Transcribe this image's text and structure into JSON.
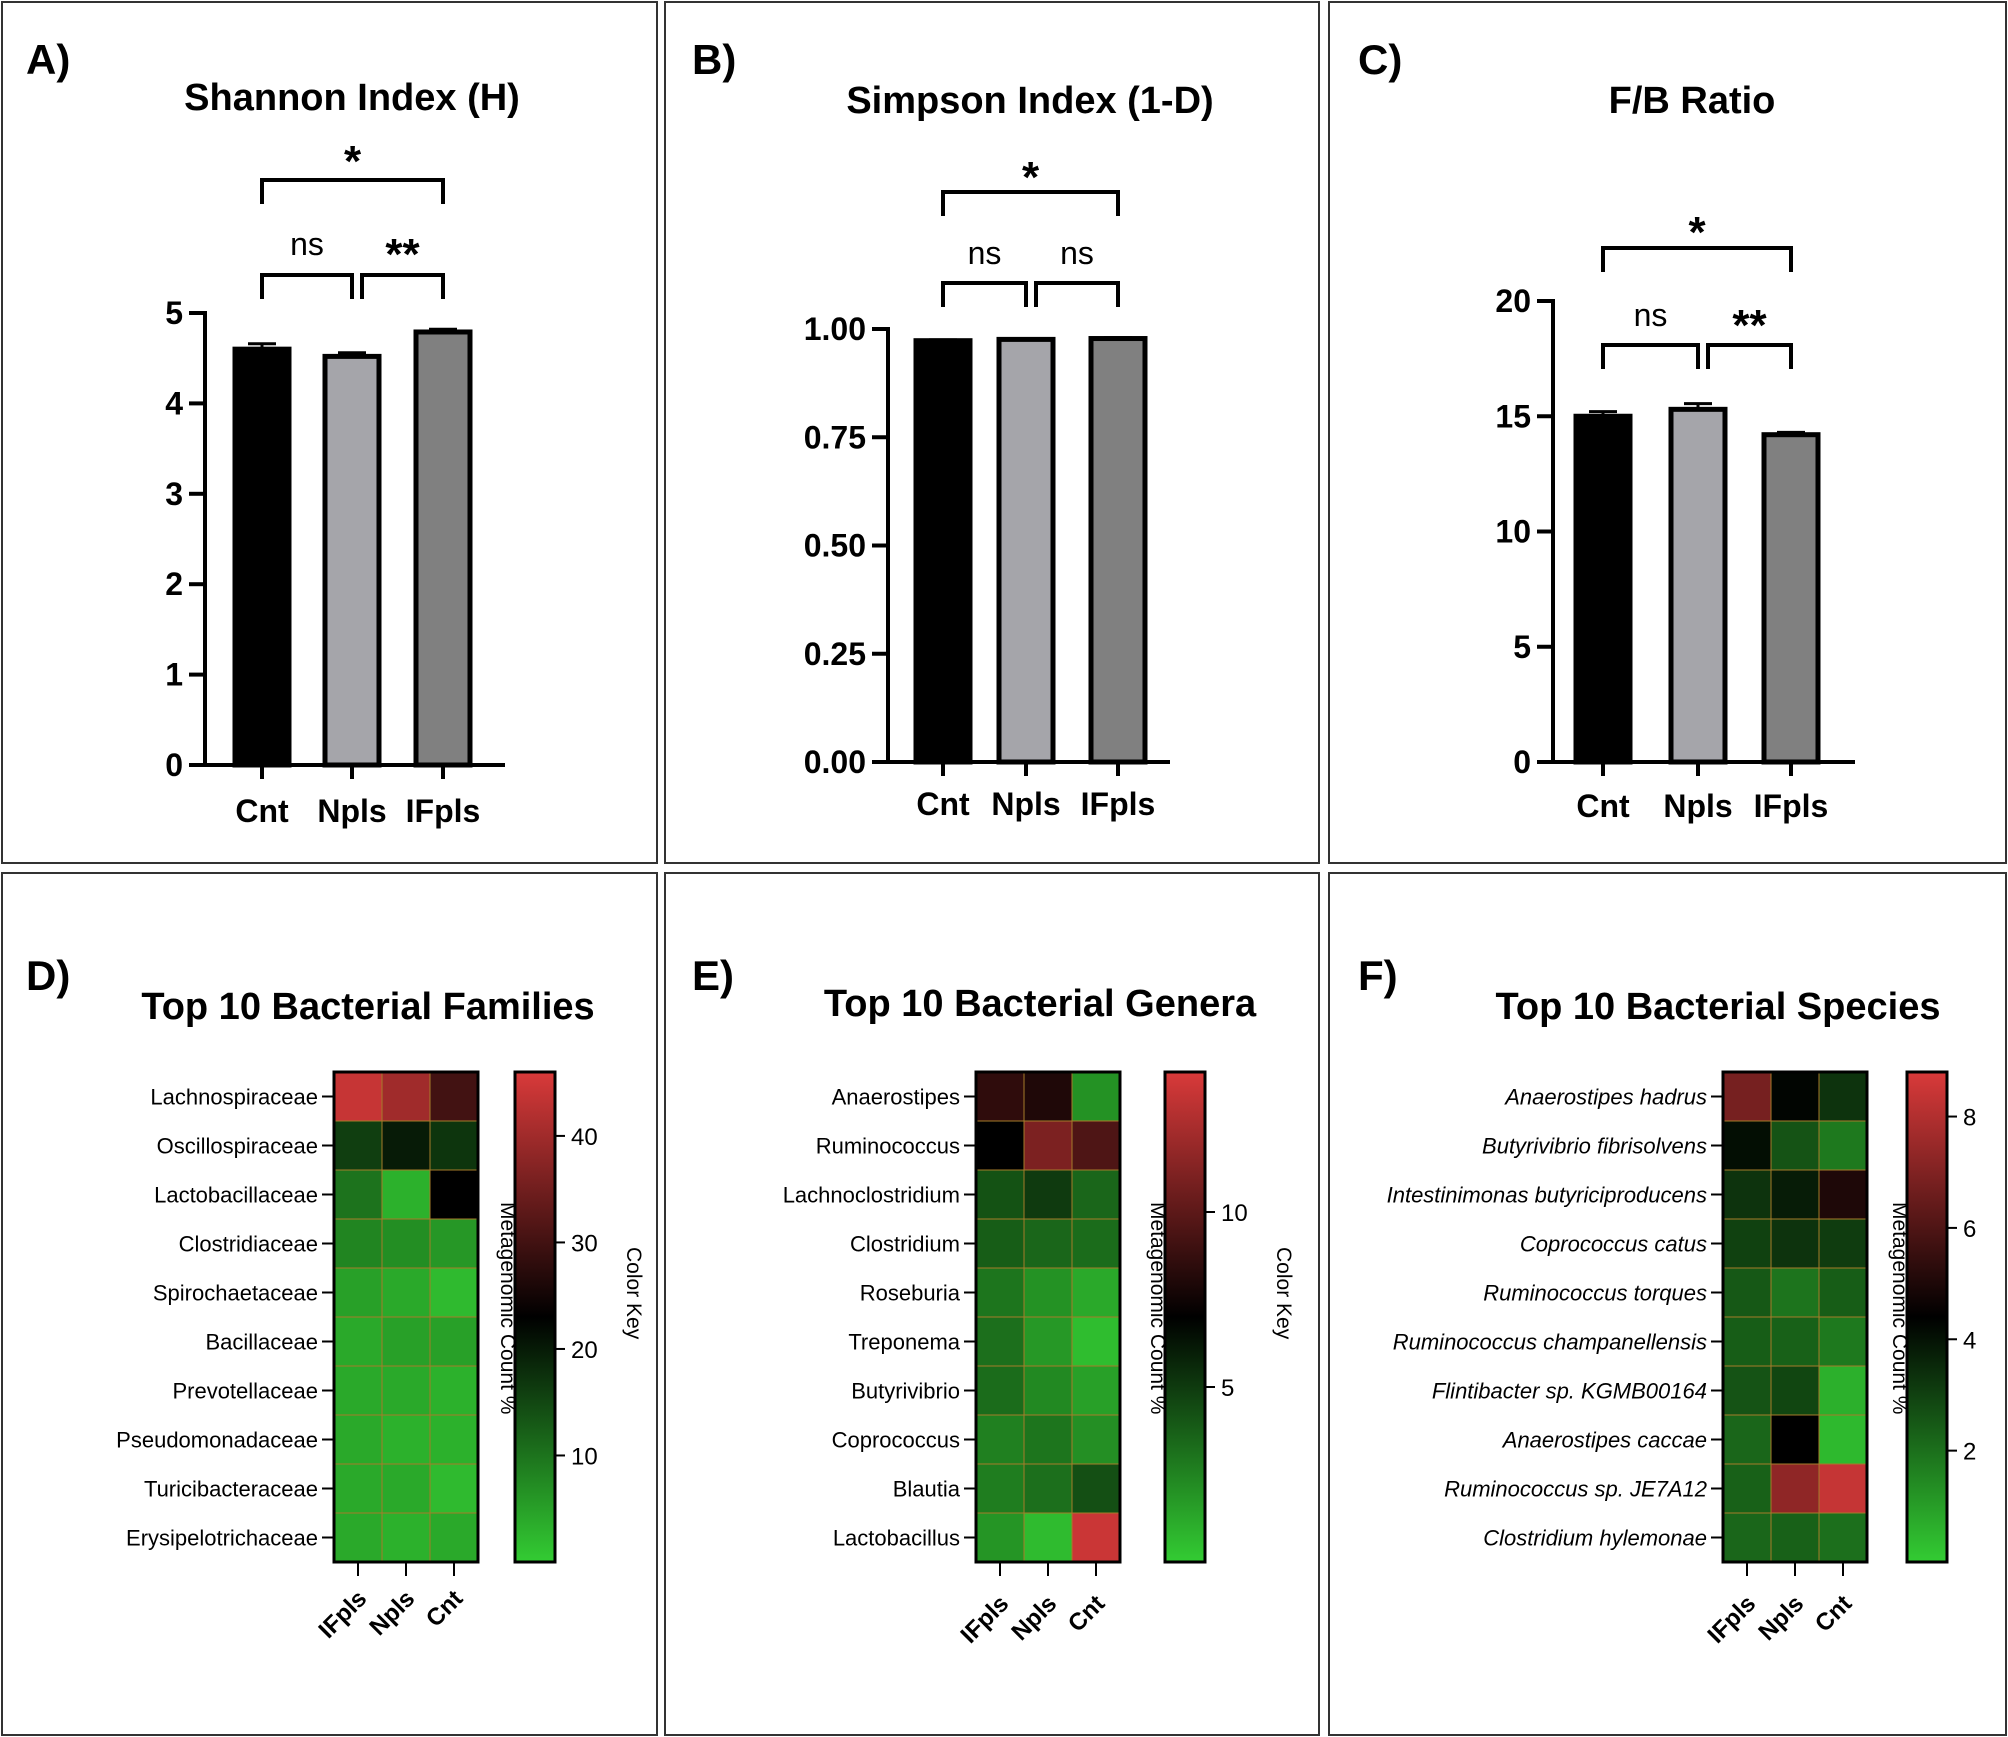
{
  "panels": {
    "A": {
      "letter": "A)",
      "chart_data": {
        "type": "bar",
        "title": "Shannon Index (H)",
        "categories": [
          "Cnt",
          "Npls",
          "IFpls"
        ],
        "values": [
          4.6,
          4.52,
          4.79
        ],
        "errors": [
          0.06,
          0.04,
          0.03
        ],
        "bar_colors": [
          "#000000",
          "#a5a5aa",
          "#808080"
        ],
        "ylim": [
          0,
          5
        ],
        "yticks": [
          0,
          1,
          2,
          3,
          4,
          5
        ],
        "tick_labels": [
          "0",
          "1",
          "2",
          "3",
          "4",
          "5"
        ],
        "significance": [
          {
            "from": 0,
            "to": 1,
            "label": "ns"
          },
          {
            "from": 1,
            "to": 2,
            "label": "**"
          },
          {
            "from": 0,
            "to": 2,
            "label": "*"
          }
        ]
      }
    },
    "B": {
      "letter": "B)",
      "chart_data": {
        "type": "bar",
        "title": "Simpson Index (1-D)",
        "categories": [
          "Cnt",
          "Npls",
          "IFpls"
        ],
        "values": [
          0.973,
          0.976,
          0.978
        ],
        "errors": [
          0.002,
          0.002,
          0.002
        ],
        "bar_colors": [
          "#000000",
          "#a5a5aa",
          "#808080"
        ],
        "ylim": [
          0,
          1.0
        ],
        "yticks": [
          0,
          0.25,
          0.5,
          0.75,
          1.0
        ],
        "tick_labels": [
          "0.00",
          "0.25",
          "0.50",
          "0.75",
          "1.00"
        ],
        "significance": [
          {
            "from": 0,
            "to": 1,
            "label": "ns"
          },
          {
            "from": 1,
            "to": 2,
            "label": "ns"
          },
          {
            "from": 0,
            "to": 2,
            "label": "*"
          }
        ]
      }
    },
    "C": {
      "letter": "C)",
      "chart_data": {
        "type": "bar",
        "title": "F/B Ratio",
        "categories": [
          "Cnt",
          "Npls",
          "IFpls"
        ],
        "values": [
          15.0,
          15.3,
          14.2
        ],
        "errors": [
          0.2,
          0.25,
          0.1
        ],
        "bar_colors": [
          "#000000",
          "#a5a5aa",
          "#808080"
        ],
        "ylim": [
          0,
          20
        ],
        "yticks": [
          0,
          5,
          10,
          15,
          20
        ],
        "tick_labels": [
          "0",
          "5",
          "10",
          "15",
          "20"
        ],
        "significance": [
          {
            "from": 0,
            "to": 1,
            "label": "ns"
          },
          {
            "from": 1,
            "to": 2,
            "label": "**"
          },
          {
            "from": 0,
            "to": 2,
            "label": "*"
          }
        ]
      }
    },
    "D": {
      "letter": "D)",
      "chart_data": {
        "type": "heatmap",
        "title": "Top 10 Bacterial Families",
        "italic_rows": false,
        "rows": [
          "Lachnospiraceae",
          "Oscillospiraceae",
          "Lactobacillaceae",
          "Clostridiaceae",
          "Spirochaetaceae",
          "Bacillaceae",
          "Prevotellaceae",
          "Pseudomonadaceae",
          "Turicibacteraceae",
          "Erysipelotrichaceae"
        ],
        "columns": [
          "IFpls",
          "Npls",
          "Cnt"
        ],
        "values": [
          [
            44,
            40,
            30
          ],
          [
            16,
            20,
            17
          ],
          [
            10,
            3,
            23
          ],
          [
            8,
            7,
            6
          ],
          [
            5,
            4,
            2
          ],
          [
            4,
            5,
            5
          ],
          [
            4,
            4,
            3
          ],
          [
            4,
            3,
            3
          ],
          [
            4,
            4,
            2
          ],
          [
            4,
            3,
            4
          ]
        ],
        "vmin": 0,
        "vmid": 23,
        "vmax": 46,
        "colorbar_ticks": [
          10,
          20,
          30,
          40
        ],
        "colorbar_label": "Metagenomic Count %",
        "colorbar_title": "Color Key"
      }
    },
    "E": {
      "letter": "E)",
      "chart_data": {
        "type": "heatmap",
        "title": "Top 10 Bacterial Genera",
        "italic_rows": false,
        "rows": [
          "Anaerostipes",
          "Ruminococcus",
          "Lachnoclostridium",
          "Clostridium",
          "Roseburia",
          "Treponema",
          "Butyrivibrio",
          "Coprococcus",
          "Blautia",
          "Lactobacillus"
        ],
        "columns": [
          "IFpls",
          "Npls",
          "Cnt"
        ],
        "values": [
          [
            8.5,
            8.0,
            2.0
          ],
          [
            7.0,
            11.0,
            9.5
          ],
          [
            4.2,
            5.0,
            3.5
          ],
          [
            3.8,
            3.5,
            3.3
          ],
          [
            3.0,
            2.0,
            1.2
          ],
          [
            3.2,
            1.8,
            0.5
          ],
          [
            3.3,
            2.3,
            1.5
          ],
          [
            2.6,
            3.0,
            2.1
          ],
          [
            2.7,
            3.2,
            4.3
          ],
          [
            1.9,
            0.6,
            13.5
          ]
        ],
        "vmin": 0,
        "vmid": 7,
        "vmax": 14,
        "colorbar_ticks": [
          5,
          10
        ],
        "colorbar_label": "Metagenomic Count %",
        "colorbar_title": "Color Key"
      }
    },
    "F": {
      "letter": "F)",
      "chart_data": {
        "type": "heatmap",
        "title": "Top 10 Bacterial Species",
        "italic_rows": true,
        "rows": [
          "Anaerostipes hadrus",
          "Butyrivibrio fibrisolvens",
          "Intestinimonas butyriciproducens",
          "Coprococcus catus",
          "Ruminococcus torques",
          "Ruminococcus champanellensis",
          "Flintibacter sp. KGMB00164",
          "Anaerostipes caccae",
          "Ruminococcus sp. JE7A12",
          "Clostridium hylemonae"
        ],
        "columns": [
          "IFpls",
          "Npls",
          "Cnt"
        ],
        "values": [
          [
            6.8,
            4.3,
            3.3
          ],
          [
            4.1,
            2.6,
            1.8
          ],
          [
            3.3,
            3.8,
            5.0
          ],
          [
            3.0,
            3.3,
            3.1
          ],
          [
            2.5,
            1.9,
            2.4
          ],
          [
            2.4,
            2.3,
            1.8
          ],
          [
            2.6,
            2.9,
            0.6
          ],
          [
            2.2,
            4.4,
            0.4
          ],
          [
            2.3,
            7.3,
            8.4
          ],
          [
            2.2,
            2.3,
            2.0
          ]
        ],
        "vmin": 0,
        "vmid": 4.4,
        "vmax": 8.8,
        "colorbar_ticks": [
          2,
          4,
          6,
          8
        ],
        "colorbar_label": "Metagenomic Count %",
        "colorbar_title": "Color Key"
      }
    }
  },
  "colors": {
    "heat_low": "#33cc33",
    "heat_mid": "#000000",
    "heat_high": "#d93a3a",
    "cell_border": "#a67c2a",
    "frame": "#333333"
  }
}
